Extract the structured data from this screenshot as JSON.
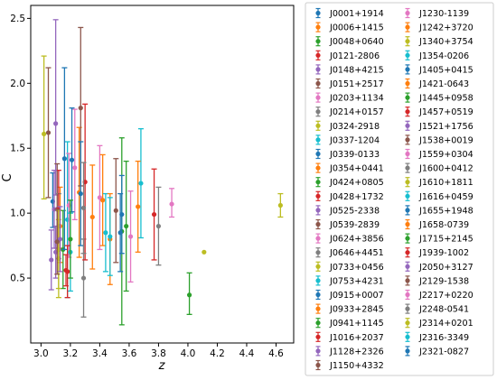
{
  "chart_data": {
    "type": "scatter",
    "title": "",
    "xlabel": "z",
    "ylabel": "C",
    "xlim": [
      2.93,
      4.72
    ],
    "ylim": [
      0.0,
      2.6
    ],
    "xticks": [
      "3.0",
      "3.2",
      "3.4",
      "3.6",
      "3.8",
      "4.0",
      "4.2",
      "4.4",
      "4.6"
    ],
    "yticks": [
      "0.5",
      "1.0",
      "1.5",
      "2.0",
      "2.5"
    ],
    "grid": false,
    "legend_placement": "outside-right",
    "series": [
      {
        "name": "J0001+1914",
        "color": "#1f77b4",
        "x": 3.08,
        "y": 1.09,
        "yerr_low": 0.2,
        "yerr_high": 0.22
      },
      {
        "name": "J0006+1415",
        "color": "#ff7f0e",
        "x": 3.13,
        "y": 0.9,
        "yerr_low": 0.28,
        "yerr_high": 0.3
      },
      {
        "name": "J0048+0640",
        "color": "#2ca02c",
        "x": 3.15,
        "y": 0.72,
        "yerr_low": 0.3,
        "yerr_high": 0.3
      },
      {
        "name": "J0121-2806",
        "color": "#d62728",
        "x": 3.17,
        "y": 0.56,
        "yerr_low": 0.12,
        "yerr_high": 0.12
      },
      {
        "name": "J0148+4215",
        "color": "#9467bd",
        "x": 3.1,
        "y": 1.69,
        "yerr_low": 0.55,
        "yerr_high": 0.8
      },
      {
        "name": "J0151+2517",
        "color": "#8c564b",
        "x": 3.11,
        "y": 1.03,
        "yerr_low": 0.3,
        "yerr_high": 0.35
      },
      {
        "name": "J0203+1134",
        "color": "#e377c2",
        "x": 3.23,
        "y": 1.35,
        "yerr_low": 0.4,
        "yerr_high": 0.45
      },
      {
        "name": "J0214+0157",
        "color": "#7f7f7f",
        "x": 3.29,
        "y": 0.5,
        "yerr_low": 0.3,
        "yerr_high": 0.3
      },
      {
        "name": "J0324-2918",
        "color": "#bcbd22",
        "x": 3.02,
        "y": 1.61,
        "yerr_low": 0.5,
        "yerr_high": 0.6
      },
      {
        "name": "J0337-1204",
        "color": "#17becf",
        "x": 3.18,
        "y": 0.95,
        "yerr_low": 0.6,
        "yerr_high": 0.6
      },
      {
        "name": "J0339-0133",
        "color": "#1f77b4",
        "x": 3.16,
        "y": 1.42,
        "yerr_low": 0.7,
        "yerr_high": 0.7
      },
      {
        "name": "J0354+0441",
        "color": "#ff7f0e",
        "x": 3.26,
        "y": 1.16,
        "yerr_low": 0.5,
        "yerr_high": 0.5
      },
      {
        "name": "J0424+0805",
        "color": "#2ca02c",
        "x": 3.55,
        "y": 0.86,
        "yerr_low": 0.72,
        "yerr_high": 0.72
      },
      {
        "name": "J0428+1732",
        "color": "#d62728",
        "x": 3.3,
        "y": 1.24,
        "yerr_low": 0.6,
        "yerr_high": 0.6
      },
      {
        "name": "J0525-2338",
        "color": "#9467bd",
        "x": 3.1,
        "y": 0.7,
        "yerr_low": 0.2,
        "yerr_high": 0.2
      },
      {
        "name": "J0539-2839",
        "color": "#8c564b",
        "x": 3.05,
        "y": 1.62,
        "yerr_low": 0.5,
        "yerr_high": 0.5
      },
      {
        "name": "J0624+3856",
        "color": "#e377c2",
        "x": 3.19,
        "y": 1.06,
        "yerr_low": 0.4,
        "yerr_high": 0.4
      },
      {
        "name": "J0646+4451",
        "color": "#7f7f7f",
        "x": 3.12,
        "y": 0.9,
        "yerr_low": 0.25,
        "yerr_high": 0.25
      },
      {
        "name": "J0733+0456",
        "color": "#bcbd22",
        "x": 3.12,
        "y": 0.65,
        "yerr_low": 0.3,
        "yerr_high": 0.3
      },
      {
        "name": "J0753+4231",
        "color": "#17becf",
        "x": 3.68,
        "y": 1.23,
        "yerr_low": 0.42,
        "yerr_high": 0.42
      },
      {
        "name": "J0915+0007",
        "color": "#1f77b4",
        "x": 3.21,
        "y": 1.41,
        "yerr_low": 0.4,
        "yerr_high": 0.4
      },
      {
        "name": "J0933+2845",
        "color": "#ff7f0e",
        "x": 3.66,
        "y": 1.05,
        "yerr_low": 0.35,
        "yerr_high": 0.35
      },
      {
        "name": "J0941+1145",
        "color": "#2ca02c",
        "x": 3.58,
        "y": 0.9,
        "yerr_low": 0.5,
        "yerr_high": 0.5
      },
      {
        "name": "J1016+2037",
        "color": "#d62728",
        "x": 3.12,
        "y": 1.03,
        "yerr_low": 0.3,
        "yerr_high": 0.3
      },
      {
        "name": "J1128+2326",
        "color": "#9467bd",
        "x": 3.07,
        "y": 0.64,
        "yerr_low": 0.23,
        "yerr_high": 0.23
      },
      {
        "name": "J1150+4332",
        "color": "#8c564b",
        "x": 3.27,
        "y": 1.81,
        "yerr_low": 0.6,
        "yerr_high": 0.62
      },
      {
        "name": "J1230-1139",
        "color": "#e377c2",
        "x": 3.4,
        "y": 1.12,
        "yerr_low": 0.4,
        "yerr_high": 0.4
      },
      {
        "name": "J1242+3720",
        "color": "#ff7f0e",
        "x": 3.42,
        "y": 1.1,
        "yerr_low": 0.35,
        "yerr_high": 0.35
      },
      {
        "name": "J1340+3754",
        "color": "#bcbd22",
        "x": 4.11,
        "y": 0.7,
        "yerr_low": 0.0,
        "yerr_high": 0.0
      },
      {
        "name": "J1354-0206",
        "color": "#17becf",
        "x": 3.44,
        "y": 0.85,
        "yerr_low": 0.3,
        "yerr_high": 0.3
      },
      {
        "name": "J1405+0415",
        "color": "#1f77b4",
        "x": 3.55,
        "y": 0.99,
        "yerr_low": 0.3,
        "yerr_high": 0.3
      },
      {
        "name": "J1421-0643",
        "color": "#ff7f0e",
        "x": 3.35,
        "y": 0.97,
        "yerr_low": 0.4,
        "yerr_high": 0.4
      },
      {
        "name": "J1445+0958",
        "color": "#2ca02c",
        "x": 4.01,
        "y": 0.37,
        "yerr_low": 0.15,
        "yerr_high": 0.17
      },
      {
        "name": "J1457+0519",
        "color": "#d62728",
        "x": 3.77,
        "y": 0.99,
        "yerr_low": 0.35,
        "yerr_high": 0.35
      },
      {
        "name": "J1521+1756",
        "color": "#9467bd",
        "x": 3.09,
        "y": 1.03,
        "yerr_low": 0.3,
        "yerr_high": 0.3
      },
      {
        "name": "J1538+0019",
        "color": "#8c564b",
        "x": 3.51,
        "y": 1.02,
        "yerr_low": 0.4,
        "yerr_high": 0.4
      },
      {
        "name": "J1559+0304",
        "color": "#e377c2",
        "x": 3.61,
        "y": 0.82,
        "yerr_low": 0.35,
        "yerr_high": 0.35
      },
      {
        "name": "J1600+0412",
        "color": "#7f7f7f",
        "x": 3.8,
        "y": 0.9,
        "yerr_low": 0.3,
        "yerr_high": 0.3
      },
      {
        "name": "J1610+1811",
        "color": "#bcbd22",
        "x": 3.12,
        "y": 0.72,
        "yerr_low": 0.3,
        "yerr_high": 0.3
      },
      {
        "name": "J1616+0459",
        "color": "#17becf",
        "x": 3.2,
        "y": 0.7,
        "yerr_low": 0.3,
        "yerr_high": 0.3
      },
      {
        "name": "J1655+1948",
        "color": "#1f77b4",
        "x": 3.27,
        "y": 1.15,
        "yerr_low": 0.4,
        "yerr_high": 0.4
      },
      {
        "name": "J1658-0739",
        "color": "#ff7f0e",
        "x": 3.47,
        "y": 0.8,
        "yerr_low": 0.35,
        "yerr_high": 0.35
      },
      {
        "name": "J1715+2145",
        "color": "#2ca02c",
        "x": 3.2,
        "y": 0.8,
        "yerr_low": 0.3,
        "yerr_high": 0.3
      },
      {
        "name": "J1939-1002",
        "color": "#d62728",
        "x": 3.18,
        "y": 0.55,
        "yerr_low": 0.2,
        "yerr_high": 0.2
      },
      {
        "name": "J2050+3127",
        "color": "#9467bd",
        "x": 3.13,
        "y": 0.8,
        "yerr_low": 0.25,
        "yerr_high": 0.25
      },
      {
        "name": "J2129-1538",
        "color": "#8c564b",
        "x": 3.11,
        "y": 0.78,
        "yerr_low": 0.25,
        "yerr_high": 0.25
      },
      {
        "name": "J2217+0220",
        "color": "#e377c2",
        "x": 3.89,
        "y": 1.07,
        "yerr_low": 0.1,
        "yerr_high": 0.12
      },
      {
        "name": "J2248-0541",
        "color": "#7f7f7f",
        "x": 3.29,
        "y": 1.04,
        "yerr_low": 0.35,
        "yerr_high": 0.35
      },
      {
        "name": "J2314+0201",
        "color": "#bcbd22",
        "x": 4.63,
        "y": 1.06,
        "yerr_low": 0.09,
        "yerr_high": 0.09
      },
      {
        "name": "J2316-3349",
        "color": "#17becf",
        "x": 3.47,
        "y": 0.82,
        "yerr_low": 0.3,
        "yerr_high": 0.3
      },
      {
        "name": "J2321-0827",
        "color": "#1f77b4",
        "x": 3.54,
        "y": 0.85,
        "yerr_low": 0.3,
        "yerr_high": 0.3
      }
    ]
  }
}
